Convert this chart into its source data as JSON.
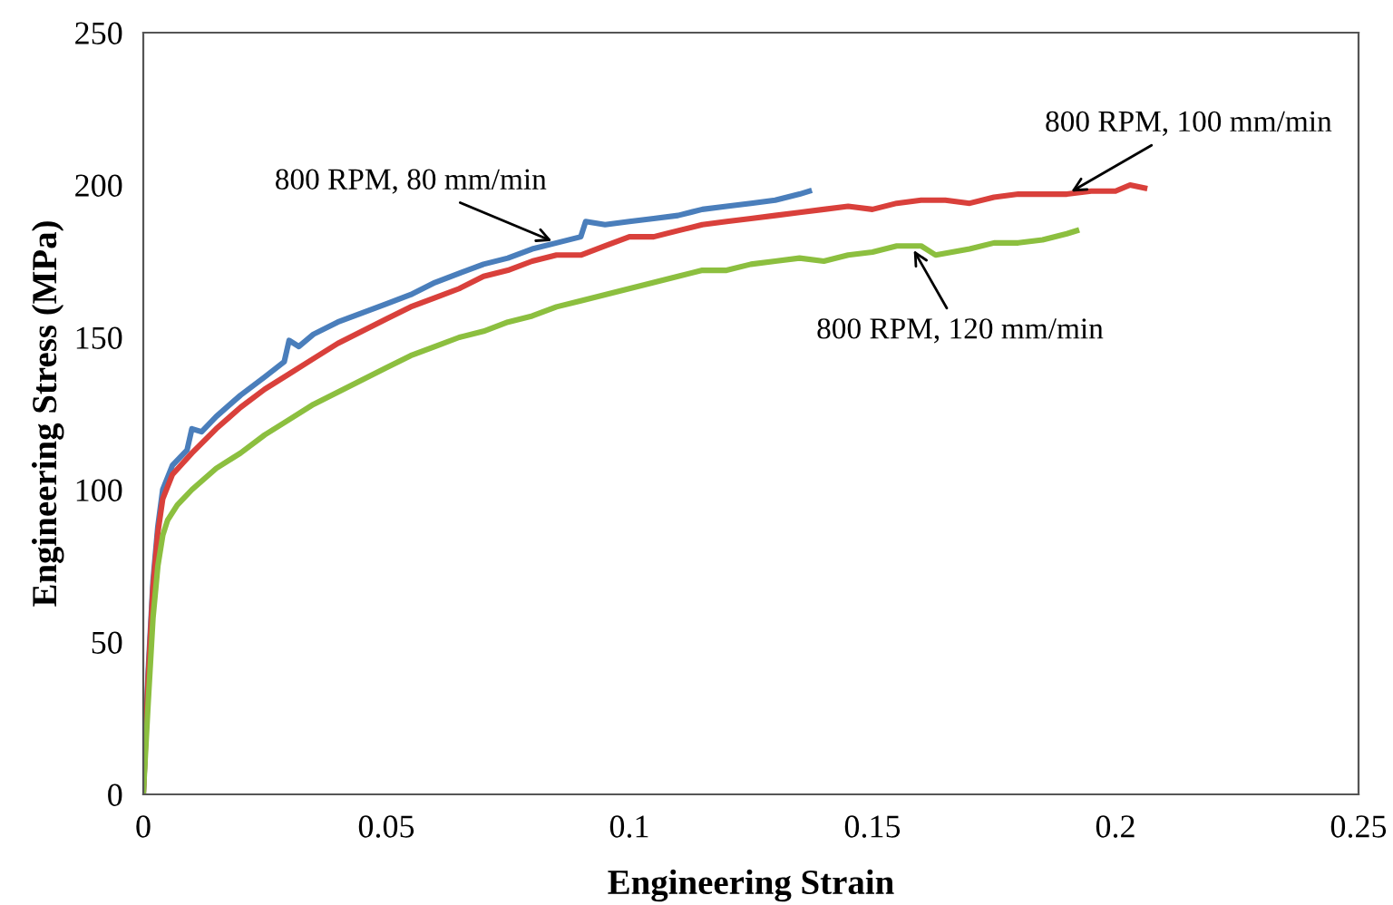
{
  "chart_data": {
    "type": "line",
    "xlabel": "Engineering Strain",
    "ylabel": "Engineering Stress (MPa)",
    "xlim": [
      0,
      0.25
    ],
    "xticks": [
      0,
      0.05,
      0.1,
      0.15,
      0.2,
      0.25
    ],
    "ylim": [
      0,
      250
    ],
    "yticks": [
      0,
      50,
      100,
      150,
      200,
      250
    ],
    "grid": false,
    "legend": false,
    "marker": "none",
    "line_style": "solid",
    "series": [
      {
        "color": "#4a7ebb",
        "x": [
          0,
          0.001,
          0.002,
          0.003,
          0.004,
          0.006,
          0.009,
          0.01,
          0.012,
          0.015,
          0.02,
          0.025,
          0.029,
          0.03,
          0.032,
          0.035,
          0.04,
          0.045,
          0.05,
          0.055,
          0.06,
          0.065,
          0.07,
          0.075,
          0.08,
          0.085,
          0.09,
          0.091,
          0.095,
          0.1,
          0.105,
          0.11,
          0.115,
          0.12,
          0.125,
          0.13,
          0.135,
          0.137
        ],
        "values": [
          0,
          40,
          70,
          88,
          100,
          108,
          113,
          120,
          119,
          124,
          131,
          137,
          142,
          149,
          147,
          151,
          155,
          158,
          161,
          164,
          168,
          171,
          174,
          176,
          179,
          181,
          183,
          188,
          187,
          188,
          189,
          190,
          192,
          193,
          194,
          195,
          197,
          198
        ]
      },
      {
        "color": "#d9403b",
        "x": [
          0,
          0.001,
          0.002,
          0.003,
          0.004,
          0.006,
          0.01,
          0.015,
          0.02,
          0.025,
          0.03,
          0.035,
          0.04,
          0.045,
          0.05,
          0.055,
          0.06,
          0.065,
          0.07,
          0.075,
          0.08,
          0.085,
          0.09,
          0.095,
          0.1,
          0.105,
          0.11,
          0.115,
          0.12,
          0.125,
          0.13,
          0.135,
          0.14,
          0.145,
          0.15,
          0.155,
          0.16,
          0.165,
          0.17,
          0.175,
          0.18,
          0.185,
          0.19,
          0.195,
          0.2,
          0.203,
          0.206
        ],
        "values": [
          0,
          38,
          68,
          86,
          97,
          105,
          112,
          120,
          127,
          133,
          138,
          143,
          148,
          152,
          156,
          160,
          163,
          166,
          170,
          172,
          175,
          177,
          177,
          180,
          183,
          183,
          185,
          187,
          188,
          189,
          190,
          191,
          192,
          193,
          192,
          194,
          195,
          195,
          194,
          196,
          197,
          197,
          197,
          198,
          198,
          200,
          199
        ]
      },
      {
        "color": "#8cbf3f",
        "x": [
          0,
          0.001,
          0.002,
          0.003,
          0.004,
          0.005,
          0.007,
          0.01,
          0.015,
          0.02,
          0.025,
          0.03,
          0.035,
          0.04,
          0.045,
          0.05,
          0.055,
          0.06,
          0.065,
          0.07,
          0.075,
          0.08,
          0.085,
          0.09,
          0.095,
          0.1,
          0.105,
          0.11,
          0.115,
          0.12,
          0.125,
          0.13,
          0.135,
          0.14,
          0.145,
          0.15,
          0.155,
          0.16,
          0.163,
          0.17,
          0.175,
          0.18,
          0.185,
          0.19,
          0.192
        ],
        "values": [
          0,
          30,
          58,
          75,
          85,
          90,
          95,
          100,
          107,
          112,
          118,
          123,
          128,
          132,
          136,
          140,
          144,
          147,
          150,
          152,
          155,
          157,
          160,
          162,
          164,
          166,
          168,
          170,
          172,
          172,
          174,
          175,
          176,
          175,
          177,
          178,
          180,
          180,
          177,
          179,
          181,
          181,
          182,
          184,
          185
        ]
      }
    ],
    "annotations": [
      {
        "text": "800 RPM, 80 mm/min",
        "x": 0.085,
        "y": 181
      },
      {
        "text": "800 RPM, 100 mm/min",
        "x": 0.19,
        "y": 197
      },
      {
        "text": "800 RPM, 120 mm/min",
        "x": 0.158,
        "y": 180
      }
    ]
  }
}
